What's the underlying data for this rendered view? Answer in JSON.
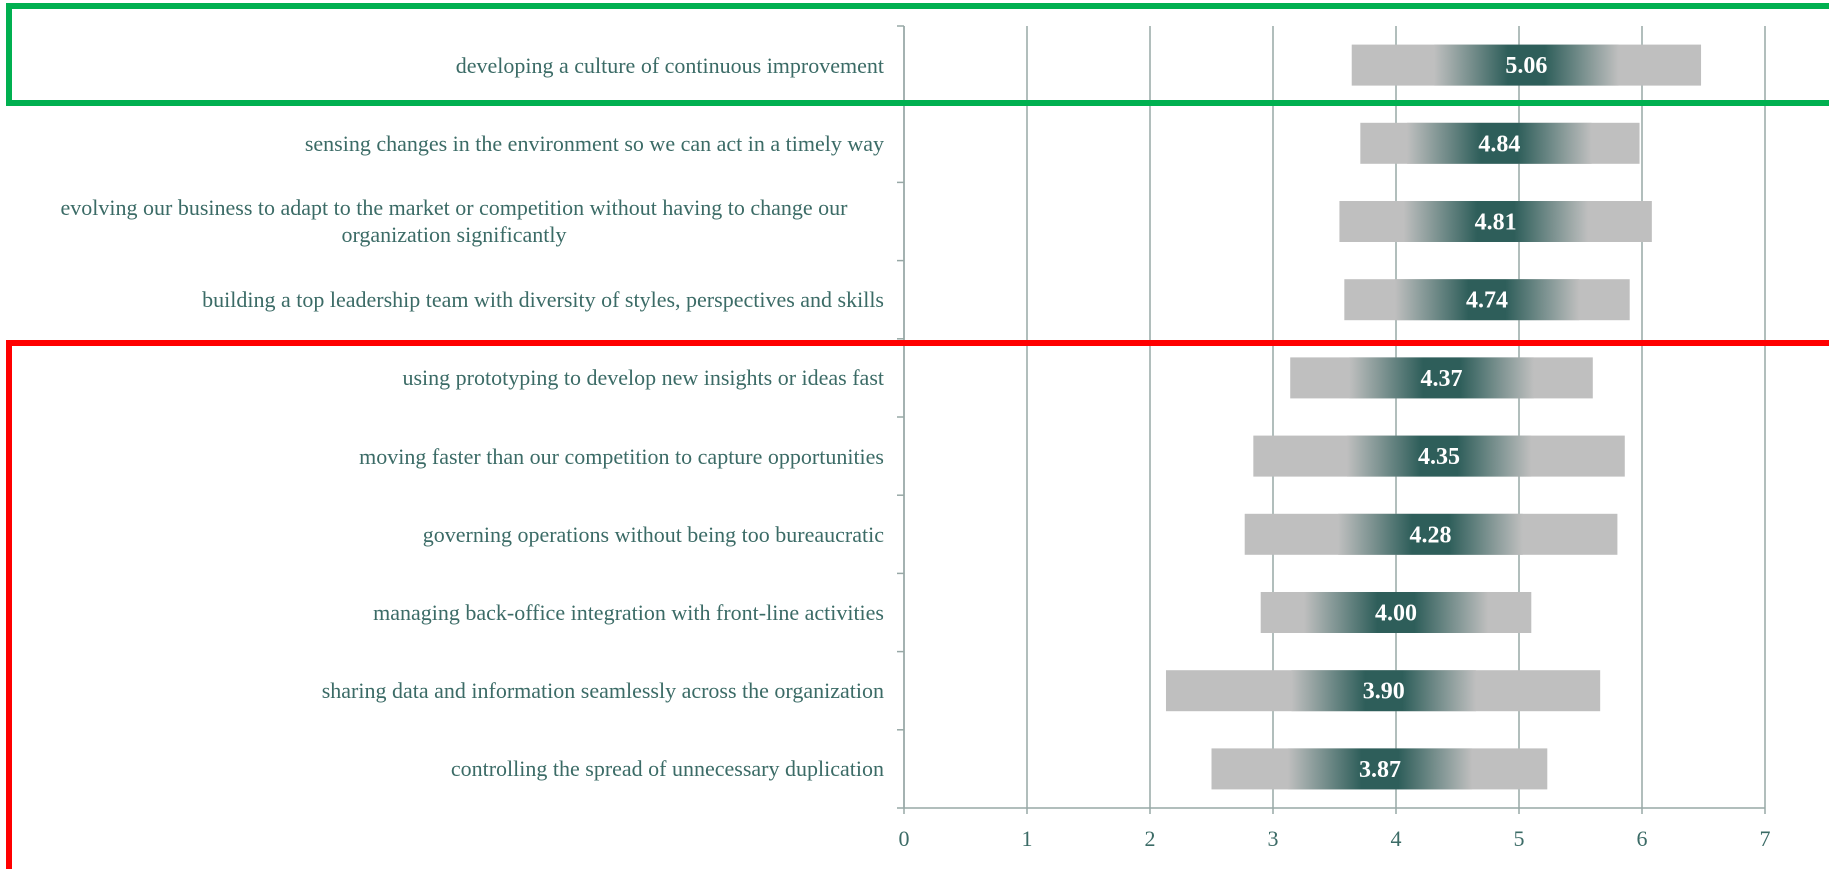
{
  "chart_data": {
    "type": "range-bar",
    "categories": [
      "developing a culture of continuous improvement",
      "sensing changes in the environment so we can act in a timely way",
      "evolving our business to adapt to the market or competition without having to change our organization significantly",
      "building a top leadership team with diversity of styles, perspectives and skills",
      "using prototyping to develop new insights or ideas fast",
      "moving faster than our competition to capture opportunities",
      "governing operations without being too bureaucratic",
      "managing back-office integration with front-line activities",
      "sharing data and information seamlessly across the organization",
      "controlling the spread of unnecessary duplication"
    ],
    "values": [
      5.06,
      4.84,
      4.81,
      4.74,
      4.37,
      4.35,
      4.28,
      4.0,
      3.9,
      3.87
    ],
    "value_labels": [
      "5.06",
      "4.84",
      "4.81",
      "4.74",
      "4.37",
      "4.35",
      "4.28",
      "4.00",
      "3.90",
      "3.87"
    ],
    "low": [
      3.64,
      3.71,
      3.54,
      3.58,
      3.14,
      2.84,
      2.77,
      2.9,
      2.13,
      2.5
    ],
    "high": [
      6.48,
      5.98,
      6.08,
      5.9,
      5.6,
      5.86,
      5.8,
      5.1,
      5.66,
      5.23
    ],
    "color": "#bfbfbf",
    "mean_color": "#2e5e5a",
    "xlim": [
      0,
      7
    ],
    "xticks": [
      0,
      1,
      2,
      3,
      4,
      5,
      6,
      7
    ],
    "grid": true
  }
}
